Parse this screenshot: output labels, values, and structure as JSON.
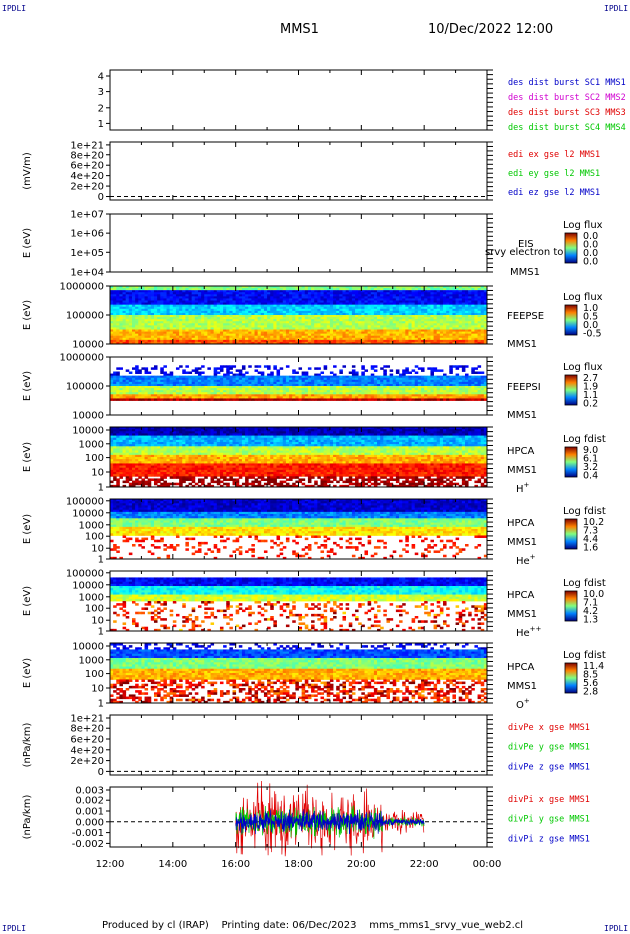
{
  "corners": {
    "tl": "IPDLI",
    "tr": "IPDLI",
    "bl": "IPDLI",
    "br": "IPDLI"
  },
  "header": {
    "spacecraft": "MMS1",
    "datetime": "10/Dec/2022 12:00"
  },
  "footer": {
    "text": "Produced by cl (IRAP)    Printing date: 06/Dec/2023    mms_mms1_srvy_vue_web2.cl"
  },
  "colors": {
    "red": "#e00000",
    "green": "#00c800",
    "blue": "#0000c8",
    "magenta": "#d000d0"
  },
  "chart_data": {
    "type": "heatmap",
    "x_ticks": [
      "12:00",
      "14:00",
      "16:00",
      "18:00",
      "20:00",
      "22:00",
      "00:00"
    ],
    "panels": [
      {
        "id": "p1",
        "type": "line",
        "ylabel": "",
        "yticks": [
          "4",
          "3",
          "2",
          "1"
        ],
        "legend": [
          {
            "text": "des dist burst SC1 MMS1",
            "color": "#0000c8"
          },
          {
            "text": "des dist burst SC2 MMS2",
            "color": "#d000d0"
          },
          {
            "text": "des dist burst SC3 MMS3",
            "color": "#e00000"
          },
          {
            "text": "des dist burst SC4 MMS4",
            "color": "#00c800"
          }
        ]
      },
      {
        "id": "p2",
        "type": "line",
        "ylabel": "(mV/m)",
        "yticks": [
          "1e+21",
          "8e+20",
          "6e+20",
          "4e+20",
          "2e+20",
          "0"
        ],
        "legend": [
          {
            "text": "edi ex gse l2 MMS1",
            "color": "#e00000"
          },
          {
            "text": "edi ey gse l2 MMS1",
            "color": "#00c800"
          },
          {
            "text": "edi ez gse l2 MMS1",
            "color": "#0000c8"
          }
        ]
      },
      {
        "id": "p3",
        "type": "heatmap",
        "ylabel": "E (eV)",
        "yticks": [
          "1e+07",
          "1e+06",
          "1e+05",
          "1e+04"
        ],
        "label": [
          "EIS",
          "srvy electron to",
          "MMS1"
        ],
        "cbar_title": "Log flux",
        "cbar_ticks": [
          "0.0",
          "0.0",
          "0.0",
          "0.0"
        ]
      },
      {
        "id": "p4",
        "type": "heatmap",
        "ylabel": "E (eV)",
        "yticks": [
          "1000000",
          "100000",
          "10000"
        ],
        "label": [
          "FEEPSE",
          "MMS1"
        ],
        "cbar_title": "Log flux",
        "cbar_ticks": [
          "1.0",
          "0.5",
          "0.0",
          "-0.5"
        ]
      },
      {
        "id": "p5",
        "type": "heatmap",
        "ylabel": "E (eV)",
        "yticks": [
          "1000000",
          "100000",
          "10000"
        ],
        "label": [
          "FEEPSI",
          "MMS1"
        ],
        "cbar_title": "Log flux",
        "cbar_ticks": [
          "2.7",
          "1.9",
          "1.1",
          "0.2"
        ]
      },
      {
        "id": "p6",
        "type": "heatmap",
        "ylabel": "E (eV)",
        "yticks": [
          "10000",
          "1000",
          "100",
          "10",
          "1"
        ],
        "label": [
          "HPCA",
          "MMS1"
        ],
        "species": "H",
        "species_sup": "+",
        "cbar_title": "Log fdist",
        "cbar_ticks": [
          "9.0",
          "6.1",
          "3.2",
          "0.4"
        ]
      },
      {
        "id": "p7",
        "type": "heatmap",
        "ylabel": "E (eV)",
        "yticks": [
          "100000",
          "10000",
          "1000",
          "100",
          "10",
          "1"
        ],
        "label": [
          "HPCA",
          "MMS1"
        ],
        "species": "He",
        "species_sup": "+",
        "cbar_title": "Log fdist",
        "cbar_ticks": [
          "10.2",
          "7.3",
          "4.4",
          "1.6"
        ]
      },
      {
        "id": "p8",
        "type": "heatmap",
        "ylabel": "E (eV)",
        "yticks": [
          "100000",
          "10000",
          "1000",
          "100",
          "10",
          "1"
        ],
        "label": [
          "HPCA",
          "MMS1"
        ],
        "species": "He",
        "species_sup": "++",
        "cbar_title": "Log fdist",
        "cbar_ticks": [
          "10.0",
          "7.1",
          "4.2",
          "1.3"
        ]
      },
      {
        "id": "p9",
        "type": "heatmap",
        "ylabel": "E (eV)",
        "yticks": [
          "10000",
          "1000",
          "100",
          "10",
          "1"
        ],
        "label": [
          "HPCA",
          "MMS1"
        ],
        "species": "O",
        "species_sup": "+",
        "cbar_title": "Log fdist",
        "cbar_ticks": [
          "11.4",
          "8.5",
          "5.6",
          "2.8"
        ]
      },
      {
        "id": "p10",
        "type": "line",
        "ylabel": "(nPa/km)",
        "yticks": [
          "1e+21",
          "8e+20",
          "6e+20",
          "4e+20",
          "2e+20",
          "0"
        ],
        "legend": [
          {
            "text": "divPe x gse MMS1",
            "color": "#e00000"
          },
          {
            "text": "divPe y gse MMS1",
            "color": "#00c800"
          },
          {
            "text": "divPe z gse MMS1",
            "color": "#0000c8"
          }
        ]
      },
      {
        "id": "p11",
        "type": "line",
        "ylabel": "(nPa/km)",
        "yticks": [
          "0.003",
          "0.002",
          "0.001",
          "0.000",
          "-0.001",
          "-0.002"
        ],
        "legend": [
          {
            "text": "divPi x gse MMS1",
            "color": "#e00000"
          },
          {
            "text": "divPi y gse MMS1",
            "color": "#00c800"
          },
          {
            "text": "divPi z gse MMS1",
            "color": "#0000c8"
          }
        ]
      }
    ]
  }
}
